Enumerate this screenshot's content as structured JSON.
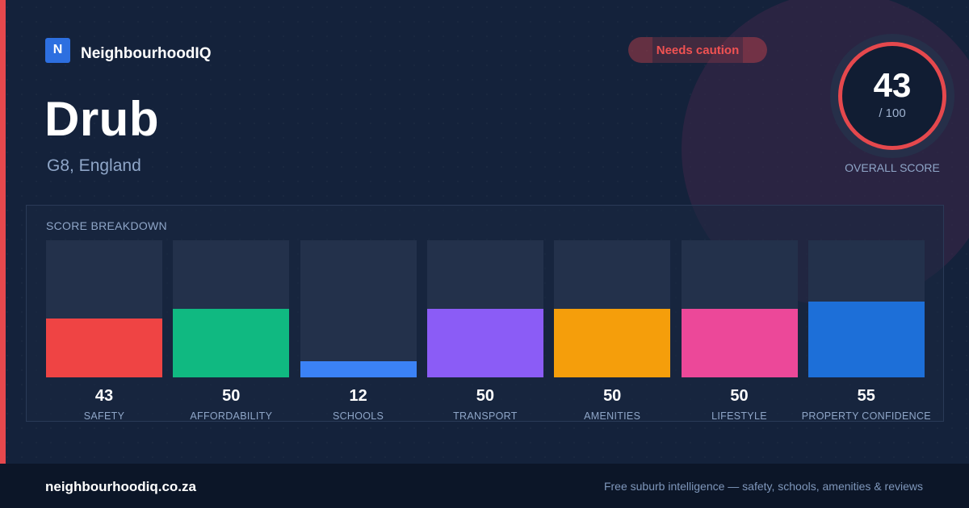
{
  "brand": {
    "mark": "N",
    "name": "NeighbourhoodIQ"
  },
  "suburb": {
    "name": "Drub",
    "location": "G8, England"
  },
  "badge": {
    "label": "Needs caution"
  },
  "overall": {
    "score": "43",
    "max": "/ 100",
    "label": "OVERALL SCORE"
  },
  "breakdown": {
    "title": "SCORE BREAKDOWN",
    "items": [
      {
        "label": "SAFETY",
        "value": "43",
        "color": "#ef4444"
      },
      {
        "label": "AFFORDABILITY",
        "value": "50",
        "color": "#10b981"
      },
      {
        "label": "SCHOOLS",
        "value": "12",
        "color": "#3b82f6"
      },
      {
        "label": "TRANSPORT",
        "value": "50",
        "color": "#8b5cf6"
      },
      {
        "label": "AMENITIES",
        "value": "50",
        "color": "#f59e0b"
      },
      {
        "label": "LIFESTYLE",
        "value": "50",
        "color": "#ec4899"
      },
      {
        "label": "PROPERTY CONFIDENCE",
        "value": "55",
        "color": "#1d6fd8"
      }
    ]
  },
  "chart_data": {
    "type": "bar",
    "categories": [
      "SAFETY",
      "AFFORDABILITY",
      "SCHOOLS",
      "TRANSPORT",
      "AMENITIES",
      "LIFESTYLE",
      "PROPERTY CONFIDENCE"
    ],
    "values": [
      43,
      50,
      12,
      50,
      50,
      50,
      55
    ],
    "title": "SCORE BREAKDOWN",
    "xlabel": "",
    "ylabel": "",
    "ylim": [
      0,
      100
    ]
  },
  "colors": {
    "accent_red": "#e5484d",
    "brand_blue": "#2d6fe0",
    "background": "#14223b"
  },
  "footer": {
    "domain": "neighbourhoodiq.co.za",
    "tagline": "Free suburb intelligence — safety, schools, amenities & reviews"
  }
}
